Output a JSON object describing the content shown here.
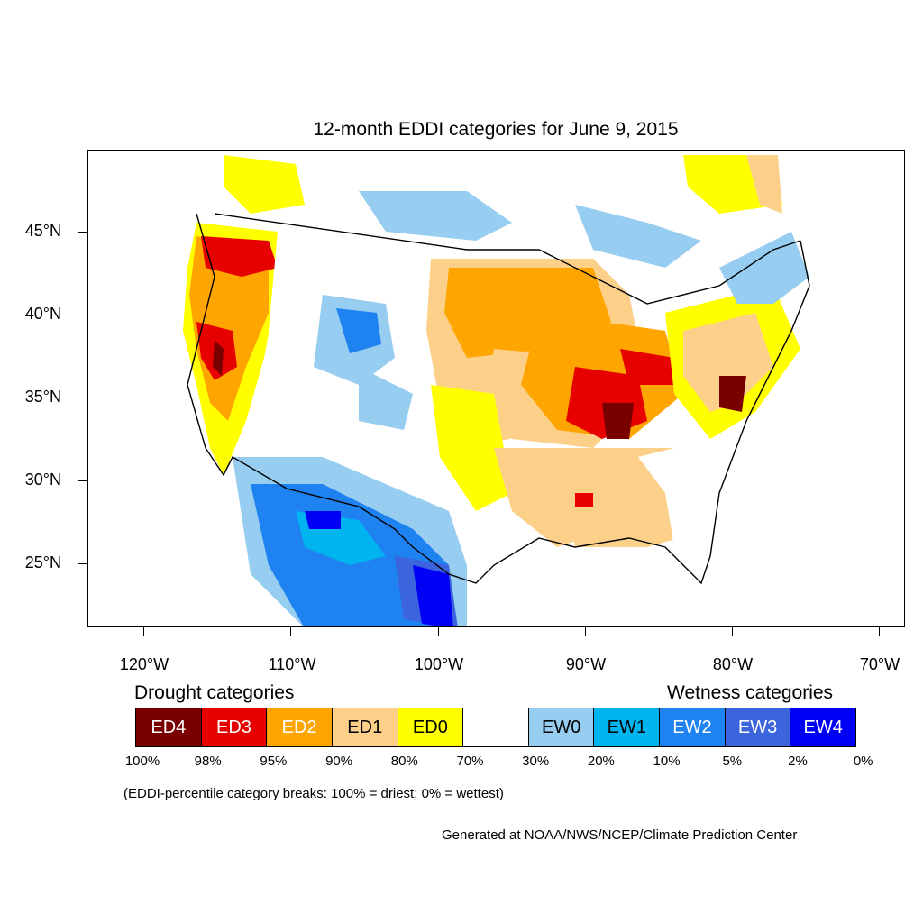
{
  "title": "12-month EDDI categories for June 9, 2015",
  "y_axis_labels": [
    "45°N",
    "40°N",
    "35°N",
    "30°N",
    "25°N"
  ],
  "x_axis_labels": [
    "120°W",
    "110°W",
    "100°W",
    "90°W",
    "80°W",
    "70°W"
  ],
  "legend": {
    "drought_heading": "Drought categories",
    "wetness_heading": "Wetness categories",
    "categories": [
      {
        "label": "ED4",
        "color": "#7a0000",
        "text_color": "#ffffff"
      },
      {
        "label": "ED3",
        "color": "#e60000",
        "text_color": "#ffffff"
      },
      {
        "label": "ED2",
        "color": "#ffa500",
        "text_color": "#ffffff"
      },
      {
        "label": "ED1",
        "color": "#fdd08a",
        "text_color": "#000000"
      },
      {
        "label": "ED0",
        "color": "#ffff00",
        "text_color": "#000000"
      },
      {
        "label": "",
        "color": "#ffffff",
        "text_color": "#000000"
      },
      {
        "label": "EW0",
        "color": "#96cdf0",
        "text_color": "#000000"
      },
      {
        "label": "EW1",
        "color": "#00b4f0",
        "text_color": "#000000"
      },
      {
        "label": "EW2",
        "color": "#1e82f0",
        "text_color": "#ffffff"
      },
      {
        "label": "EW3",
        "color": "#3c64dc",
        "text_color": "#ffffff"
      },
      {
        "label": "EW4",
        "color": "#0000f5",
        "text_color": "#ffffff"
      }
    ],
    "percentile_breaks": [
      "100%",
      "98%",
      "95%",
      "90%",
      "80%",
      "70%",
      "30%",
      "20%",
      "10%",
      "5%",
      "2%",
      "0%"
    ]
  },
  "note": "(EDDI-percentile category breaks: 100% = driest; 0% = wettest)",
  "credit": "Generated at NOAA/NWS/NCEP/Climate Prediction Center"
}
